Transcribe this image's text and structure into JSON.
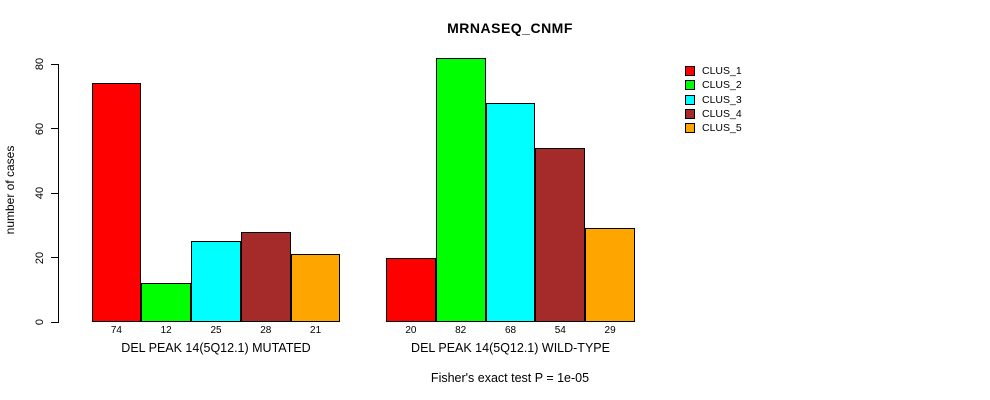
{
  "chart_data": {
    "type": "bar",
    "title": "MRNASEQ_CNMF",
    "ylabel": "number of cases",
    "xlabel": "",
    "ylim": [
      0,
      80
    ],
    "yticks": [
      0,
      20,
      40,
      60,
      80
    ],
    "grid": false,
    "legend_position": "top-right",
    "series": [
      {
        "name": "CLUS_1",
        "color": "#FF0000"
      },
      {
        "name": "CLUS_2",
        "color": "#00FF00"
      },
      {
        "name": "CLUS_3",
        "color": "#00FFFF"
      },
      {
        "name": "CLUS_4",
        "color": "#A52A2A"
      },
      {
        "name": "CLUS_5",
        "color": "#FFA500"
      }
    ],
    "groups": [
      {
        "label": "DEL PEAK 14(5Q12.1) MUTATED",
        "values": [
          74,
          12,
          25,
          28,
          21
        ]
      },
      {
        "label": "DEL PEAK 14(5Q12.1) WILD-TYPE",
        "values": [
          20,
          82,
          68,
          54,
          29
        ]
      }
    ],
    "bar_border_color": "#000000",
    "axis_color": "#000000",
    "footnote": "Fisher's exact test P = 1e-05"
  }
}
